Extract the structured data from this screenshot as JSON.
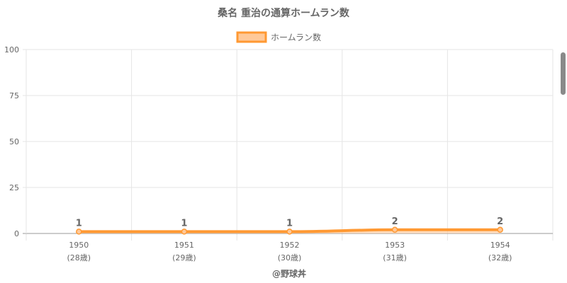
{
  "chart_data": {
    "type": "area",
    "title": "桑名 重治の通算ホームラン数",
    "categories": [
      "1950",
      "1951",
      "1952",
      "1953",
      "1954"
    ],
    "sublabels": [
      "(28歳)",
      "(29歳)",
      "(30歳)",
      "(31歳)",
      "(32歳)"
    ],
    "series": [
      {
        "name": "ホームラン数",
        "values": [
          1,
          1,
          1,
          2,
          2
        ],
        "color": "#FF9933"
      }
    ],
    "data_labels": [
      "1",
      "1",
      "1",
      "2",
      "2"
    ],
    "ylim": [
      0,
      100
    ],
    "yticks": [
      "0",
      "25",
      "50",
      "75",
      "100"
    ],
    "ytick_values": [
      0,
      25,
      50,
      75,
      100
    ],
    "grid": true,
    "legend_position": "top"
  },
  "credit": "@野球丼",
  "colors": {
    "line": "#FF9933",
    "fill": "#FFC999",
    "grid": "#e5e5e5",
    "axis": "#999999",
    "text": "#666666"
  }
}
